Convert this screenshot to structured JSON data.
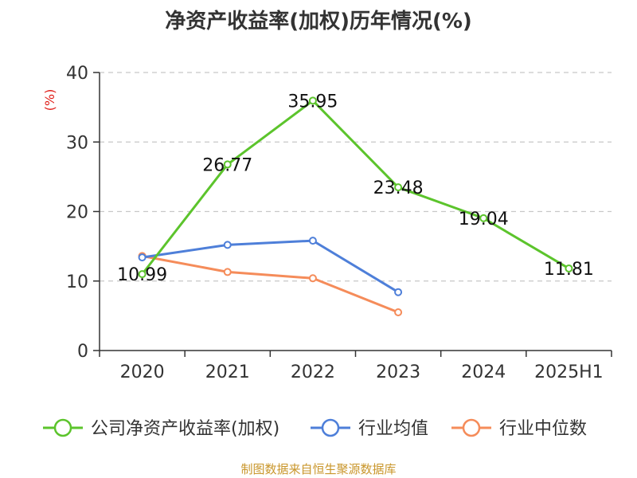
{
  "chart_data": {
    "type": "line",
    "title": "净资产收益率(加权)历年情况(%)",
    "ylabel": "(%)",
    "xlabel": "",
    "categories": [
      "2020",
      "2021",
      "2022",
      "2023",
      "2024",
      "2025H1"
    ],
    "ylim": [
      0,
      40
    ],
    "yticks": [
      "0",
      "10",
      "20",
      "30",
      "40"
    ],
    "grid": "horizontal dashed",
    "legend_position": "bottom",
    "series": [
      {
        "name": "公司净资产收益率(加权)",
        "color": "#5cc42c",
        "values": [
          10.99,
          26.77,
          35.95,
          23.48,
          19.04,
          11.81
        ],
        "labels": [
          "10.99",
          "26.77",
          "35.95",
          "23.48",
          "19.04",
          "11.81"
        ]
      },
      {
        "name": "行业均值",
        "color": "#4e7fd9",
        "values": [
          13.4,
          15.2,
          15.8,
          8.4,
          null,
          null
        ]
      },
      {
        "name": "行业中位数",
        "color": "#f58c5a",
        "values": [
          13.6,
          11.3,
          10.4,
          5.5,
          null,
          null
        ]
      }
    ]
  },
  "footer": {
    "source": "制图数据来自恒生聚源数据库"
  }
}
